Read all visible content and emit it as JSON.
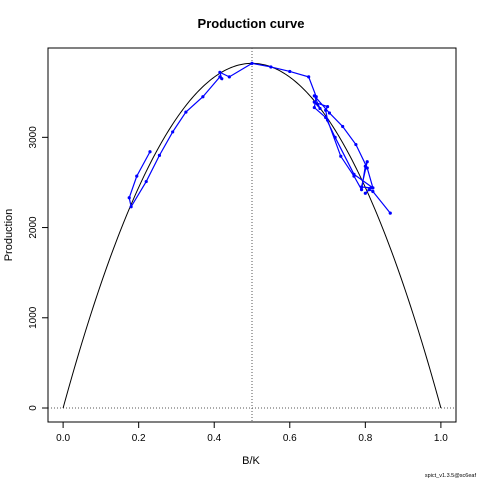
{
  "chart_data": {
    "type": "line",
    "title": "Production curve",
    "xlabel": "B/K",
    "ylabel": "Production",
    "credit": "spict_v1.3.5@sc6eaf",
    "xlim": [
      -0.04,
      1.04
    ],
    "ylim": [
      -155,
      3990
    ],
    "x_ticks": [
      0,
      0.2,
      0.4,
      0.6,
      0.8,
      1
    ],
    "x_tick_labels": [
      "0.0",
      "0.2",
      "0.4",
      "0.6",
      "0.8",
      "1.0"
    ],
    "y_ticks": [
      0,
      1000,
      2000,
      3000
    ],
    "y_tick_labels": [
      "0",
      "1000",
      "2000",
      "3000"
    ],
    "grid": false,
    "colors": {
      "trajectory": "#0000ff",
      "curve": "#000000",
      "reference": "#555555"
    },
    "curve": {
      "name": "",
      "max_production": 3820,
      "bmsy_over_k": 0.5
    },
    "reference_lines": {
      "vertical_x": 0.5,
      "horizontal_y": 0
    },
    "series": [
      {
        "name": "",
        "points": [
          [
            0.866,
            2160
          ],
          [
            0.82,
            2400
          ],
          [
            0.81,
            2420
          ],
          [
            0.8,
            2380
          ],
          [
            0.815,
            2440
          ],
          [
            0.79,
            2450
          ],
          [
            0.805,
            2730
          ],
          [
            0.8,
            2680
          ],
          [
            0.79,
            2420
          ],
          [
            0.77,
            2570
          ],
          [
            0.735,
            2790
          ],
          [
            0.7,
            3190
          ],
          [
            0.695,
            3300
          ],
          [
            0.7,
            3340
          ],
          [
            0.665,
            3390
          ],
          [
            0.68,
            3320
          ],
          [
            0.665,
            3460
          ],
          [
            0.705,
            3270
          ],
          [
            0.74,
            3120
          ],
          [
            0.775,
            2920
          ],
          [
            0.805,
            2660
          ],
          [
            0.82,
            2440
          ],
          [
            0.77,
            2590
          ],
          [
            0.72,
            3000
          ],
          [
            0.695,
            3220
          ],
          [
            0.665,
            3330
          ],
          [
            0.67,
            3450
          ],
          [
            0.65,
            3670
          ],
          [
            0.6,
            3730
          ],
          [
            0.55,
            3780
          ],
          [
            0.5,
            3820
          ],
          [
            0.44,
            3670
          ],
          [
            0.415,
            3720
          ],
          [
            0.42,
            3650
          ],
          [
            0.415,
            3670
          ],
          [
            0.37,
            3450
          ],
          [
            0.325,
            3280
          ],
          [
            0.29,
            3060
          ],
          [
            0.255,
            2800
          ],
          [
            0.22,
            2510
          ],
          [
            0.18,
            2230
          ],
          [
            0.175,
            2330
          ],
          [
            0.195,
            2570
          ],
          [
            0.23,
            2840
          ]
        ]
      }
    ]
  }
}
